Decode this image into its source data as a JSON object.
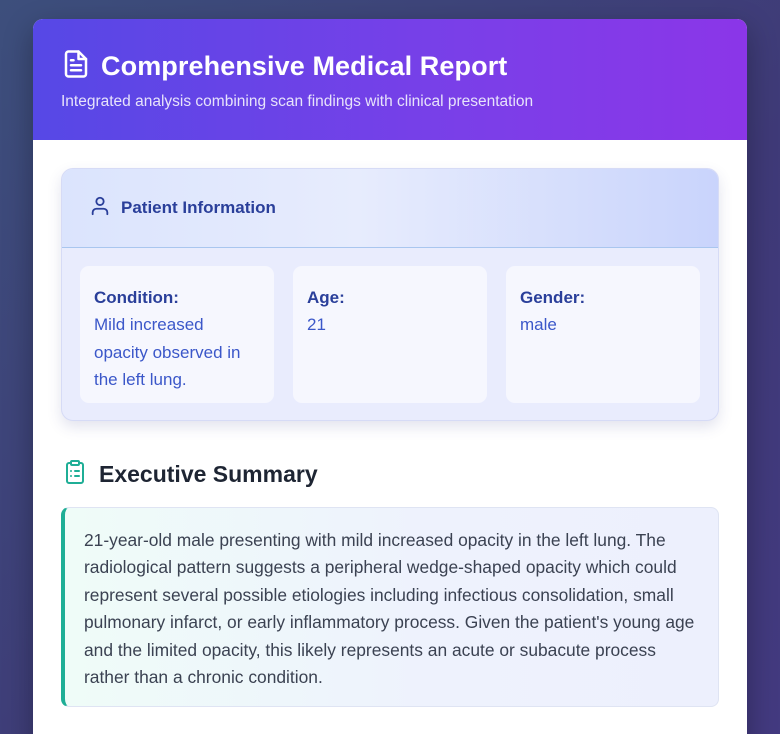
{
  "report": {
    "title": "Comprehensive Medical Report",
    "subtitle": "Integrated analysis combining scan findings with clinical presentation"
  },
  "patient": {
    "heading": "Patient Information",
    "fields": [
      {
        "label": "Condition:",
        "value": "Mild increased opacity observed in the left lung."
      },
      {
        "label": "Age:",
        "value": "21"
      },
      {
        "label": "Gender:",
        "value": "male"
      }
    ]
  },
  "summary": {
    "heading": "Executive Summary",
    "text": "21-year-old male presenting with mild increased opacity in the left lung. The radiological pattern suggests a peripheral wedge-shaped opacity which could represent several possible etiologies including infectious consolidation, small pulmonary infarct, or early inflammatory process. Given the patient's young age and the limited opacity, this likely represents an acute or subacute process rather than a chronic condition."
  },
  "icons": {
    "report": "document-icon",
    "patient": "user-icon",
    "summary": "clipboard-icon"
  },
  "colors": {
    "header_start": "#5648e6",
    "header_end": "#8b36e8",
    "accent_blue": "#2a3f9a",
    "accent_teal": "#1fae96"
  }
}
